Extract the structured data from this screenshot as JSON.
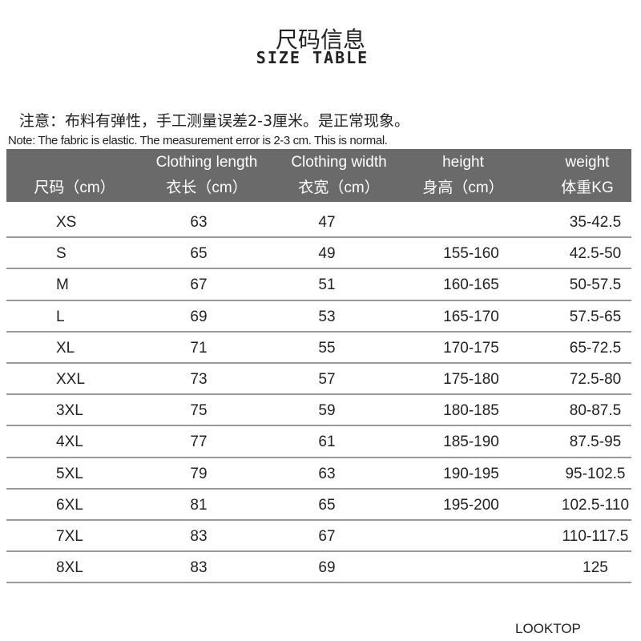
{
  "title": {
    "cn": "尺码信息",
    "en": "SIZE TABLE"
  },
  "notes": {
    "cn": "注意：布料有弹性，手工测量误差2-3厘米。是正常现象。",
    "en": "Note: The fabric is elastic. The measurement error is 2-3 cm. This is normal."
  },
  "colors": {
    "header_bg": "#6a6a6a",
    "header_text": "#ffffff",
    "row_divider": "#999999"
  },
  "table": {
    "headers": [
      {
        "en": "",
        "cn": "尺码（cm）"
      },
      {
        "en": "Clothing length",
        "cn": "衣长（cm）"
      },
      {
        "en": "Clothing width",
        "cn": "衣宽（cm）"
      },
      {
        "en": "height",
        "cn": "身高（cm）"
      },
      {
        "en": "weight",
        "cn": "体重KG"
      }
    ],
    "rows": [
      [
        "XS",
        "63",
        "47",
        "",
        "35-42.5"
      ],
      [
        "S",
        "65",
        "49",
        "155-160",
        "42.5-50"
      ],
      [
        "M",
        "67",
        "51",
        "160-165",
        "50-57.5"
      ],
      [
        "L",
        "69",
        "53",
        "165-170",
        "57.5-65"
      ],
      [
        "XL",
        "71",
        "55",
        "170-175",
        "65-72.5"
      ],
      [
        "XXL",
        "73",
        "57",
        "175-180",
        "72.5-80"
      ],
      [
        "3XL",
        "75",
        "59",
        "180-185",
        "80-87.5"
      ],
      [
        "4XL",
        "77",
        "61",
        "185-190",
        "87.5-95"
      ],
      [
        "5XL",
        "79",
        "63",
        "190-195",
        "95-102.5"
      ],
      [
        "6XL",
        "81",
        "65",
        "195-200",
        "102.5-110"
      ],
      [
        "7XL",
        "83",
        "67",
        "",
        "110-117.5"
      ],
      [
        "8XL",
        "83",
        "69",
        "",
        "125"
      ]
    ]
  },
  "brand": "LOOKTOP"
}
